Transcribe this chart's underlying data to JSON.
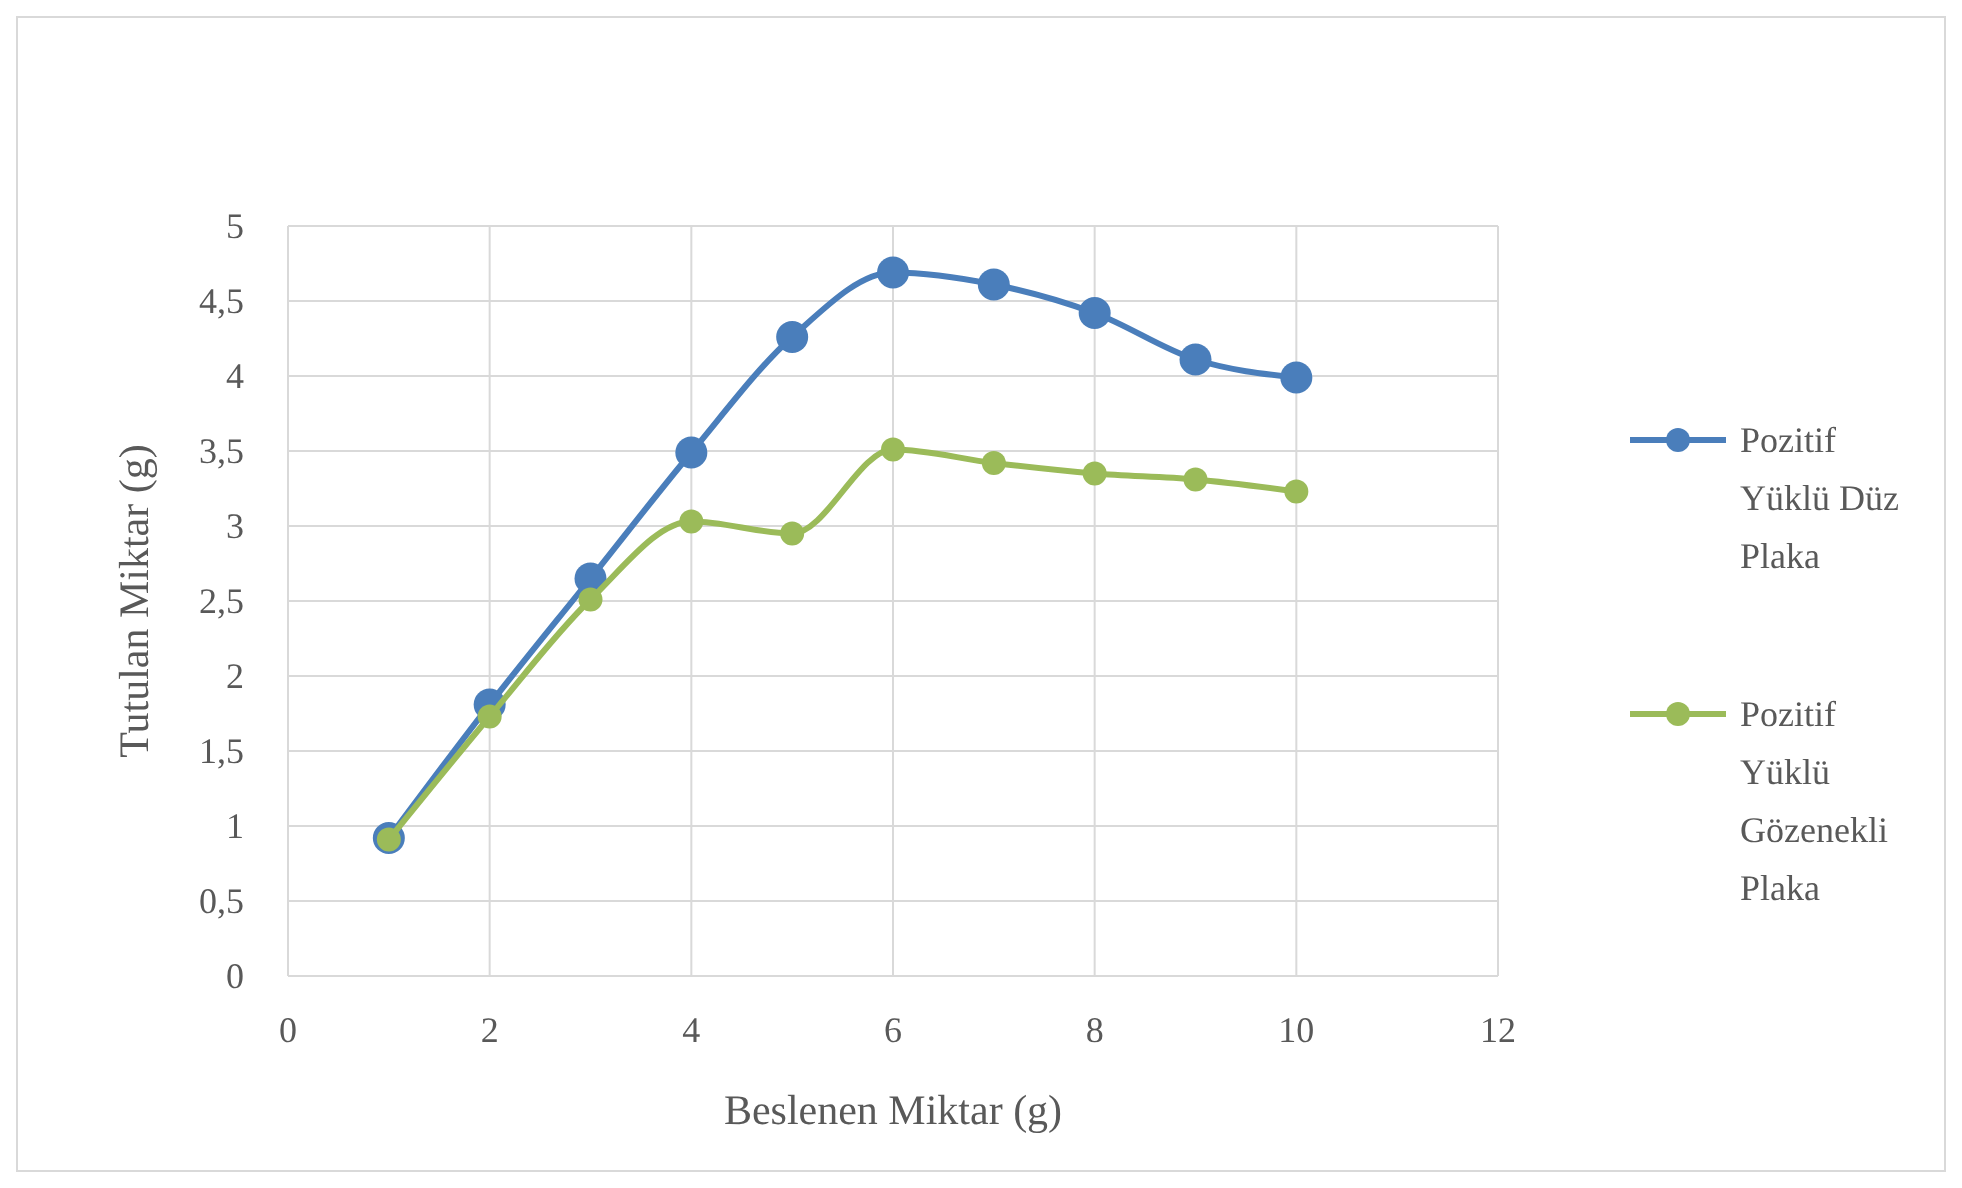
{
  "chart_data": {
    "type": "line",
    "xlabel": "Beslenen Miktar (g)",
    "ylabel": "Tutulan Miktar (g)",
    "x": [
      1,
      2,
      3,
      4,
      5,
      6,
      7,
      8,
      9,
      10
    ],
    "series": [
      {
        "name": "Pozitif Yüklü Düz Plaka",
        "color": "#4a7ebb",
        "values": [
          0.92,
          1.81,
          2.65,
          3.49,
          4.26,
          4.69,
          4.61,
          4.42,
          4.11,
          3.99
        ]
      },
      {
        "name": "Pozitif Yüklü Gözenekli Plaka",
        "color": "#9bbb59",
        "values": [
          0.91,
          1.73,
          2.51,
          3.03,
          2.95,
          3.51,
          3.42,
          3.35,
          3.31,
          3.23
        ]
      }
    ],
    "xlim": [
      0,
      12
    ],
    "xticks": [
      0,
      2,
      4,
      6,
      8,
      10,
      12
    ],
    "ylim": [
      0,
      5
    ],
    "yticks": [
      0,
      {
        "value": 0.5,
        "label": "0,5"
      },
      1,
      {
        "value": 1.5,
        "label": "1,5"
      },
      2,
      {
        "value": 2.5,
        "label": "2,5"
      },
      3,
      {
        "value": 3.5,
        "label": "3,5"
      },
      4,
      {
        "value": 4.5,
        "label": "4,5"
      },
      5
    ],
    "grid": true,
    "legend": "right",
    "marker": "circle",
    "line_style": "solid"
  }
}
